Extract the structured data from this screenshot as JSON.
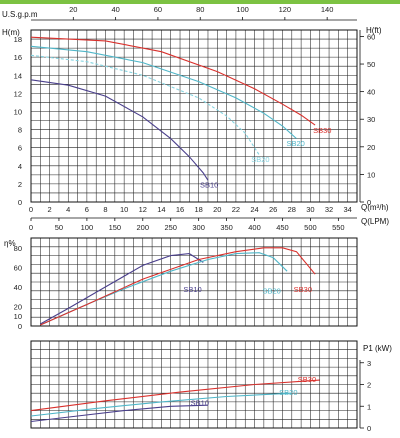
{
  "chart_data": {
    "type": "line",
    "colors": {
      "SB10": "#4a3f8c",
      "SB20": "#4fb6c8",
      "SB30": "#d9302c",
      "SB20_mid": "#84d3e0",
      "grid": "#222222",
      "header_bar": "#7cc242"
    },
    "flow_axes": {
      "usgpm": {
        "label": "U.S.g.p.m",
        "ticks": [
          20,
          40,
          60,
          80,
          100,
          120,
          140
        ],
        "lim": [
          0,
          150
        ]
      },
      "m3h": {
        "label": "Q(m³/h)",
        "ticks": [
          0,
          2,
          4,
          6,
          8,
          10,
          12,
          14,
          16,
          18,
          20,
          22,
          24,
          26,
          28,
          30,
          32,
          34
        ],
        "lim": [
          0,
          35
        ]
      },
      "lpm": {
        "label": "Q(LPM)",
        "ticks": [
          0,
          50,
          100,
          150,
          200,
          250,
          300,
          350,
          400,
          450,
          500,
          550
        ],
        "lim": [
          0,
          583
        ]
      }
    },
    "head_chart": {
      "ylabel_left": "H(m)",
      "ylabel_right": "H(ft)",
      "yticks_m": [
        0,
        2,
        4,
        6,
        8,
        10,
        12,
        14,
        16,
        18
      ],
      "ylim_m": [
        0,
        19
      ],
      "yticks_ft": [
        0,
        10,
        20,
        30,
        40,
        50,
        60
      ],
      "grid": true,
      "series": [
        {
          "name": "SB10",
          "x": [
            0,
            4,
            8,
            12,
            15,
            17,
            18.5,
            19
          ],
          "y": [
            13.5,
            12.9,
            11.7,
            9.4,
            7.0,
            5.0,
            3.2,
            2.4
          ]
        },
        {
          "name": "SB20",
          "x": [
            0,
            6,
            12,
            18,
            22,
            25,
            27,
            28.5
          ],
          "y": [
            17.2,
            16.6,
            15.4,
            13.3,
            11.5,
            9.8,
            8.4,
            7.0
          ]
        },
        {
          "name": "SB20",
          "x": [
            0,
            6,
            12,
            18,
            21,
            23,
            24.5
          ],
          "y": [
            16.2,
            15.5,
            14.0,
            11.5,
            9.5,
            7.6,
            5.2
          ]
        },
        {
          "name": "SB30",
          "x": [
            0,
            8,
            14,
            20,
            24,
            27,
            29,
            30.5
          ],
          "y": [
            18.2,
            17.8,
            16.6,
            14.4,
            12.5,
            10.8,
            9.6,
            8.5
          ]
        }
      ]
    },
    "efficiency_chart": {
      "ylabel": "η%",
      "yticks": [
        0,
        10,
        20,
        40,
        60,
        80
      ],
      "ylim": [
        0,
        90
      ],
      "grid": true,
      "series": [
        {
          "name": "SB10",
          "x": [
            1,
            4,
            8,
            12,
            15,
            17,
            18.5
          ],
          "y": [
            2,
            18,
            40,
            62,
            72,
            74,
            65
          ]
        },
        {
          "name": "SB20",
          "x": [
            1,
            5,
            10,
            15,
            19,
            22,
            24.5,
            26,
            27.5
          ],
          "y": [
            1,
            18,
            38,
            56,
            68,
            74,
            75,
            70,
            56
          ]
        },
        {
          "name": "SB30",
          "x": [
            1,
            6,
            12,
            18,
            22,
            25,
            27,
            28.5,
            30.5
          ],
          "y": [
            1,
            22,
            48,
            68,
            76,
            80,
            80,
            76,
            53
          ]
        }
      ]
    },
    "power_chart": {
      "ylabel": "P1 (kW)",
      "yticks": [
        0,
        1,
        2,
        3
      ],
      "ylim": [
        0,
        4
      ],
      "grid": true,
      "series": [
        {
          "name": "SB10",
          "x": [
            0,
            5,
            10,
            15,
            19
          ],
          "y": [
            0.3,
            0.55,
            0.8,
            1.0,
            1.05
          ]
        },
        {
          "name": "SB20",
          "x": [
            0,
            7,
            14,
            21,
            28
          ],
          "y": [
            0.55,
            0.9,
            1.2,
            1.45,
            1.6
          ]
        },
        {
          "name": "SB30",
          "x": [
            0,
            8,
            16,
            24,
            31
          ],
          "y": [
            0.8,
            1.25,
            1.65,
            2.0,
            2.2
          ]
        }
      ]
    }
  }
}
